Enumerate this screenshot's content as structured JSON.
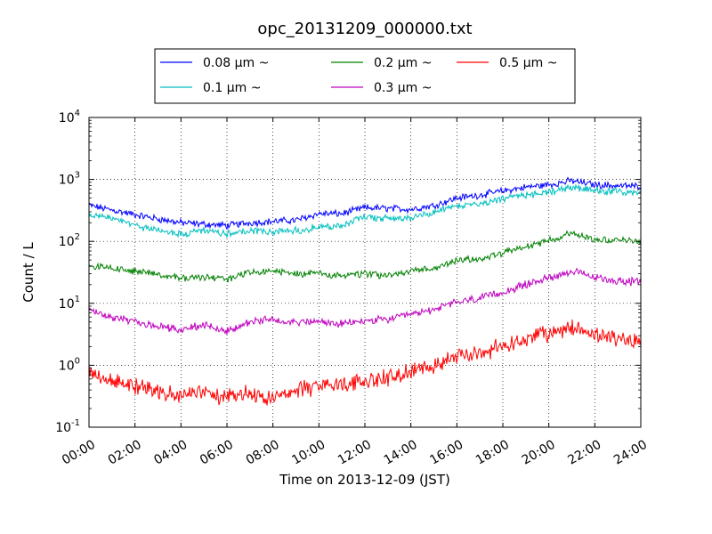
{
  "chart_data": {
    "type": "line",
    "title": "opc_20131209_000000.txt",
    "xlabel": "Time on 2013-12-09 (JST)",
    "ylabel": "Count / L",
    "y_scale": "log",
    "ylim": [
      0.1,
      10000
    ],
    "xlim": [
      "00:00",
      "24:00"
    ],
    "grid": true,
    "legend_position": "top-center",
    "x_tick_labels": [
      "00:00",
      "02:00",
      "04:00",
      "06:00",
      "08:00",
      "10:00",
      "12:00",
      "14:00",
      "16:00",
      "18:00",
      "20:00",
      "22:00",
      "24:00"
    ],
    "y_ticks": [
      {
        "base": "10",
        "exp": "-1",
        "value": 0.1
      },
      {
        "base": "10",
        "exp": "0",
        "value": 1
      },
      {
        "base": "10",
        "exp": "1",
        "value": 10
      },
      {
        "base": "10",
        "exp": "2",
        "value": 100
      },
      {
        "base": "10",
        "exp": "3",
        "value": 1000
      },
      {
        "base": "10",
        "exp": "4",
        "value": 10000
      }
    ],
    "x_hours": [
      0,
      1,
      2,
      3,
      4,
      5,
      6,
      7,
      8,
      9,
      10,
      11,
      12,
      13,
      14,
      15,
      16,
      17,
      18,
      19,
      20,
      21,
      22,
      23,
      24
    ],
    "series": [
      {
        "name": "0.08 μm ~",
        "color": "#0000ff",
        "values": [
          380,
          320,
          270,
          230,
          200,
          190,
          180,
          200,
          210,
          220,
          280,
          280,
          350,
          340,
          330,
          380,
          500,
          560,
          650,
          750,
          820,
          950,
          820,
          790,
          780
        ]
      },
      {
        "name": "0.1 μm ~",
        "color": "#00bfbf",
        "values": [
          270,
          230,
          180,
          150,
          130,
          150,
          130,
          150,
          140,
          150,
          170,
          180,
          250,
          230,
          240,
          290,
          380,
          410,
          480,
          560,
          620,
          750,
          660,
          620,
          600
        ]
      },
      {
        "name": "0.2 μm ~",
        "color": "#008000",
        "values": [
          40,
          37,
          33,
          30,
          25,
          27,
          24,
          32,
          33,
          30,
          30,
          28,
          30,
          28,
          33,
          36,
          50,
          52,
          65,
          80,
          105,
          135,
          110,
          104,
          102
        ]
      },
      {
        "name": "0.3 μm ~",
        "color": "#bf00bf",
        "values": [
          7.5,
          6.0,
          5.0,
          4.3,
          3.8,
          4.5,
          3.5,
          5.0,
          5.5,
          5.0,
          5.0,
          4.6,
          5.2,
          5.5,
          6.5,
          8.0,
          10.5,
          12,
          15,
          20,
          26,
          33,
          26,
          23,
          22
        ]
      },
      {
        "name": "0.5 μm ~",
        "color": "#ff0000",
        "values": [
          0.8,
          0.55,
          0.45,
          0.4,
          0.35,
          0.35,
          0.3,
          0.35,
          0.3,
          0.4,
          0.45,
          0.5,
          0.55,
          0.65,
          0.8,
          1.0,
          1.4,
          1.6,
          2.0,
          2.6,
          3.2,
          4.0,
          3.2,
          2.7,
          2.5
        ]
      }
    ]
  }
}
